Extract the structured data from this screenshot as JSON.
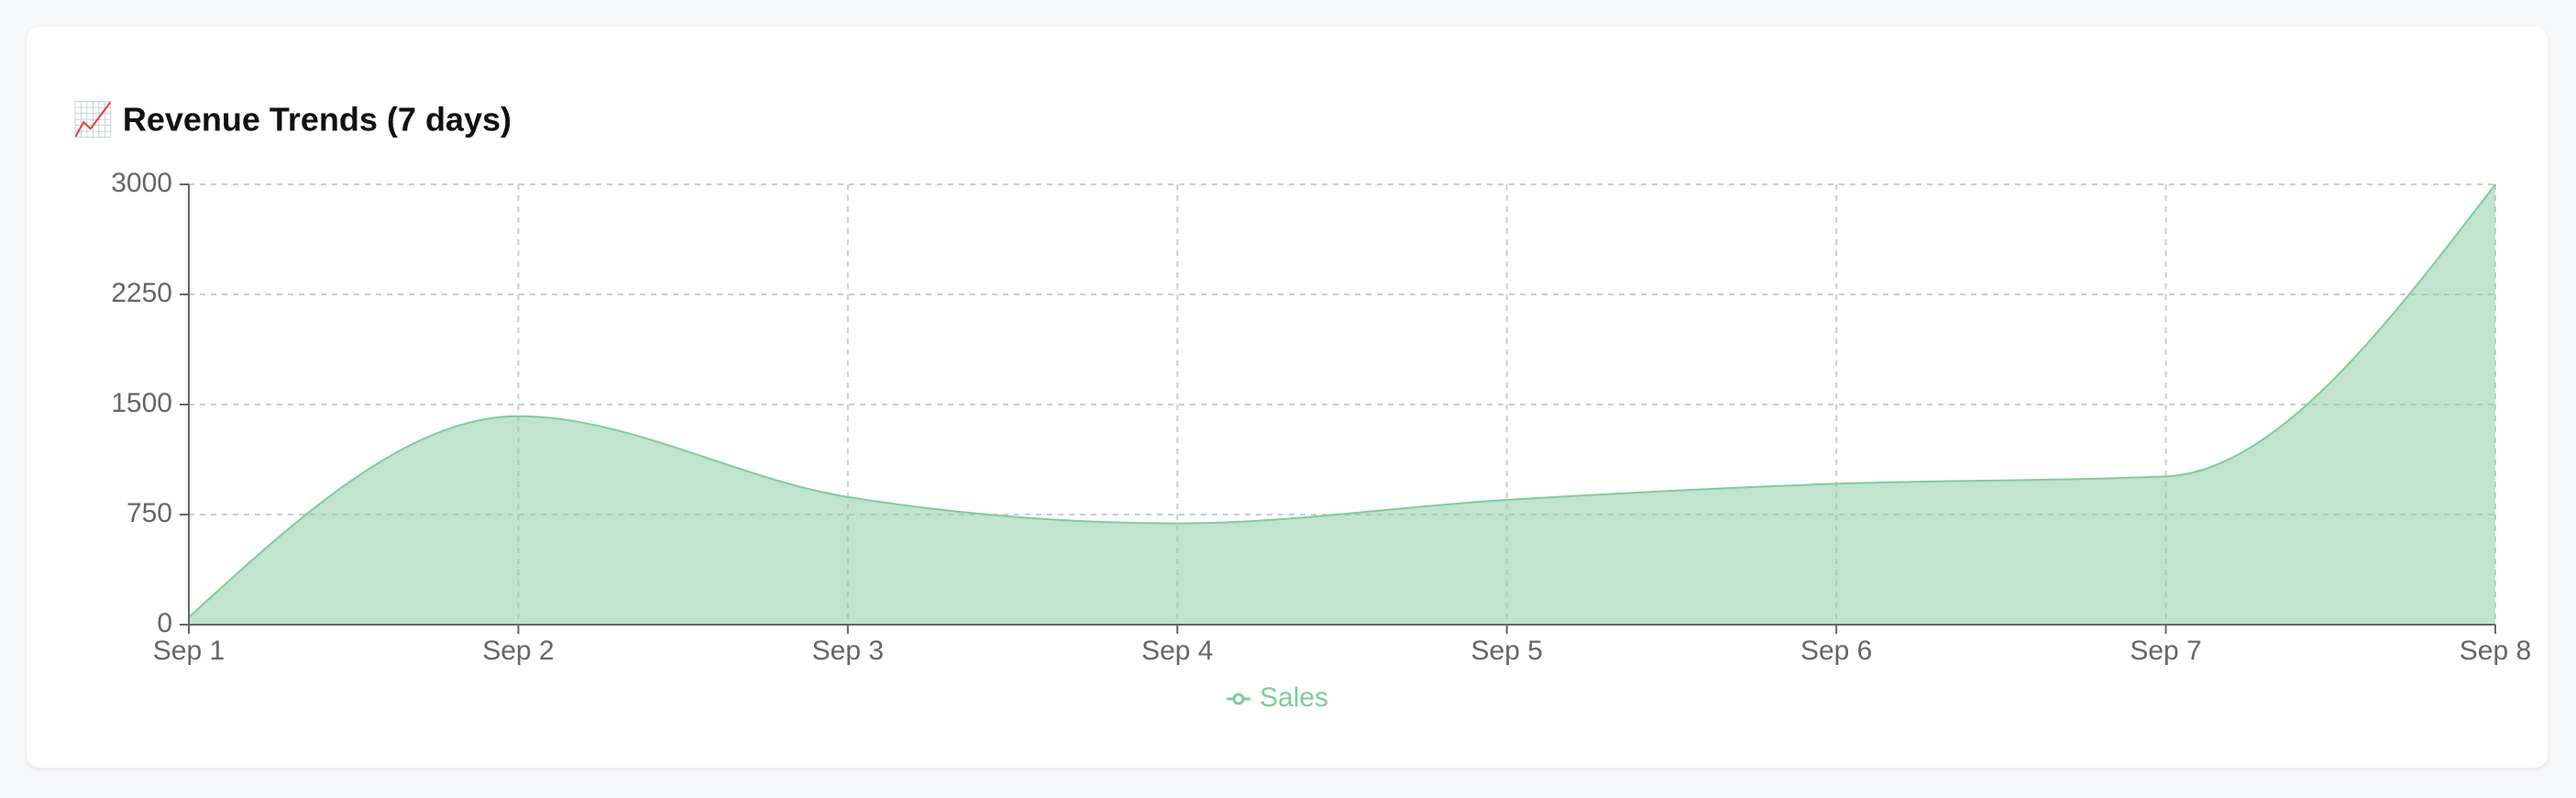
{
  "chart_data": {
    "type": "area",
    "title": "📈 Revenue Trends (7 days)",
    "categories": [
      "Sep 1",
      "Sep 2",
      "Sep 3",
      "Sep 4",
      "Sep 5",
      "Sep 6",
      "Sep 7",
      "Sep 8"
    ],
    "series": [
      {
        "name": "Sales",
        "color": "#82ca9d",
        "values": [
          50,
          1420,
          870,
          690,
          850,
          960,
          1010,
          3000
        ]
      }
    ],
    "ylim": [
      0,
      3000
    ],
    "yticks": [
      0,
      750,
      1500,
      2250,
      3000
    ],
    "grid": true,
    "legend": "bottom"
  }
}
